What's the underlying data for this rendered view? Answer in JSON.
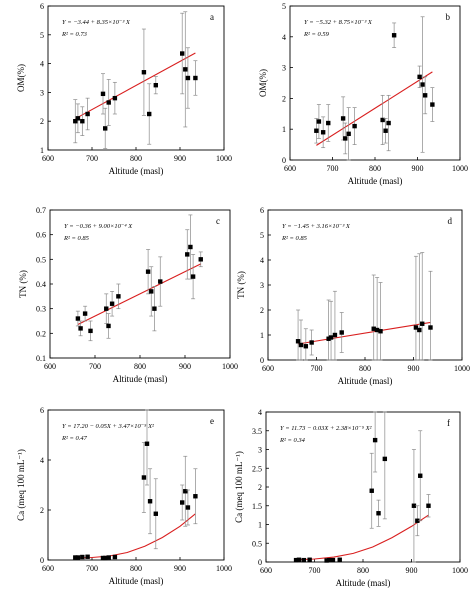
{
  "chart_data": [
    {
      "type": "scatter",
      "panel_label": "a",
      "equation": "Y = −3.44 + 8.35×10⁻³ X",
      "r2": "R² = 0.73",
      "xlabel": "Altitude (masl)",
      "ylabel": "OM(%)",
      "xlim": [
        600,
        1000
      ],
      "ylim": [
        1,
        6
      ],
      "xticks": [
        600,
        700,
        800,
        900,
        1000
      ],
      "yticks": [
        1,
        2,
        3,
        4,
        5,
        6
      ],
      "x": [
        662,
        668,
        678,
        690,
        725,
        730,
        738,
        752,
        818,
        830,
        845,
        905,
        912,
        918,
        935
      ],
      "y": [
        2.0,
        2.1,
        2.0,
        2.25,
        2.95,
        1.75,
        2.65,
        2.8,
        3.7,
        2.25,
        3.25,
        4.35,
        3.8,
        3.5,
        3.5
      ],
      "err": [
        0.75,
        0.5,
        0.5,
        0.55,
        0.7,
        0.7,
        0.8,
        0.55,
        1.5,
        1.05,
        0.3,
        1.4,
        2.0,
        1.05,
        0.6
      ],
      "fit": {
        "type": "linear",
        "a": -3.44,
        "b": 0.00835,
        "x_range": [
          662,
          935
        ]
      }
    },
    {
      "type": "scatter",
      "panel_label": "b",
      "equation": "Y = −5.32 + 8.75×10⁻³ X",
      "r2": "R² = 0.59",
      "xlabel": "Altitude (masl)",
      "ylabel": "OM(%)",
      "xlim": [
        600,
        1000
      ],
      "ylim": [
        0,
        5
      ],
      "xticks": [
        600,
        700,
        800,
        900,
        1000
      ],
      "yticks": [
        0,
        1,
        2,
        3,
        4,
        5
      ],
      "x": [
        662,
        668,
        678,
        690,
        725,
        730,
        738,
        752,
        818,
        825,
        832,
        845,
        905,
        912,
        918,
        935
      ],
      "y": [
        0.95,
        1.25,
        0.9,
        1.2,
        1.35,
        0.7,
        0.85,
        1.1,
        1.3,
        0.95,
        1.2,
        4.05,
        2.7,
        2.45,
        2.1,
        1.8
      ],
      "err": [
        0.4,
        0.55,
        0.5,
        0.6,
        0.7,
        0.5,
        0.85,
        0.6,
        0.8,
        0.4,
        0.9,
        0.4,
        0.35,
        2.2,
        0.6,
        0.55
      ],
      "fit": {
        "type": "linear",
        "a": -5.32,
        "b": 0.00875,
        "x_range": [
          662,
          935
        ]
      }
    },
    {
      "type": "scatter",
      "panel_label": "c",
      "equation": "Y = −0.36 + 9.00×10⁻⁴ X",
      "r2": "R² = 0.85",
      "xlabel": "Altitude (masl)",
      "ylabel": "TN (%)",
      "xlim": [
        600,
        1000
      ],
      "ylim": [
        0.1,
        0.7
      ],
      "xticks": [
        600,
        700,
        800,
        900,
        1000
      ],
      "yticks": [
        0.1,
        0.2,
        0.3,
        0.4,
        0.5,
        0.6,
        0.7
      ],
      "x": [
        662,
        668,
        678,
        690,
        725,
        730,
        738,
        752,
        818,
        825,
        832,
        845,
        905,
        912,
        918,
        935
      ],
      "y": [
        0.26,
        0.22,
        0.28,
        0.21,
        0.3,
        0.23,
        0.32,
        0.35,
        0.45,
        0.37,
        0.3,
        0.41,
        0.52,
        0.55,
        0.43,
        0.5
      ],
      "err": [
        0.03,
        0.03,
        0.03,
        0.04,
        0.06,
        0.05,
        0.05,
        0.05,
        0.09,
        0.1,
        0.09,
        0.1,
        0.1,
        0.13,
        0.09,
        0.03
      ],
      "fit": {
        "type": "linear",
        "a": -0.36,
        "b": 0.0009,
        "x_range": [
          662,
          935
        ]
      }
    },
    {
      "type": "scatter",
      "panel_label": "d",
      "equation": "Y = −1.45 + 3.16×10⁻³ X",
      "r2": "R² = 0.85",
      "xlabel": "Altitude (masl)",
      "ylabel": "TN (%)",
      "xlim": [
        600,
        1000
      ],
      "ylim": [
        0,
        6
      ],
      "xticks": [
        600,
        700,
        800,
        900,
        1000
      ],
      "yticks": [
        0,
        1,
        2,
        3,
        4,
        5,
        6
      ],
      "x": [
        662,
        668,
        678,
        690,
        725,
        730,
        738,
        752,
        818,
        825,
        832,
        905,
        912,
        918,
        935
      ],
      "y": [
        0.75,
        0.6,
        0.55,
        0.7,
        0.85,
        0.9,
        1.0,
        1.1,
        1.25,
        1.2,
        1.15,
        1.3,
        1.2,
        1.45,
        1.3
      ],
      "err": [
        1.25,
        1.0,
        0.7,
        0.5,
        1.55,
        1.45,
        1.75,
        0.8,
        2.15,
        2.1,
        1.95,
        2.85,
        3.05,
        2.85,
        2.25
      ],
      "fit": {
        "type": "linear",
        "a": -1.45,
        "b": 0.00316,
        "x_range": [
          662,
          935
        ]
      }
    },
    {
      "type": "scatter",
      "panel_label": "e",
      "equation": "Y = 17.20 − 0.05X + 3.47×10⁻⁵ X²",
      "r2": "R² = 0.47",
      "xlabel": "Altitude (masl)",
      "ylabel": "Ca (meq 100 mL⁻¹)",
      "xlim": [
        600,
        1000
      ],
      "ylim": [
        0,
        6
      ],
      "xticks": [
        600,
        700,
        800,
        900,
        1000
      ],
      "yticks": [
        0,
        2,
        4,
        6
      ],
      "x": [
        662,
        668,
        678,
        690,
        725,
        730,
        738,
        752,
        818,
        825,
        832,
        845,
        905,
        912,
        918,
        935
      ],
      "y": [
        0.1,
        0.1,
        0.12,
        0.13,
        0.08,
        0.08,
        0.1,
        0.12,
        3.3,
        4.65,
        2.35,
        1.85,
        2.3,
        2.75,
        2.1,
        2.55
      ],
      "err": [
        0.05,
        0.05,
        0.05,
        0.05,
        0.04,
        0.04,
        0.05,
        0.05,
        1.4,
        1.65,
        1.3,
        1.4,
        0.7,
        1.4,
        0.7,
        1.1
      ],
      "fit": {
        "type": "quadratic",
        "x_range": [
          662,
          935
        ],
        "points": [
          [
            662,
            0.08
          ],
          [
            700,
            0.1
          ],
          [
            740,
            0.16
          ],
          [
            780,
            0.3
          ],
          [
            820,
            0.55
          ],
          [
            860,
            0.9
          ],
          [
            900,
            1.35
          ],
          [
            935,
            1.85
          ]
        ]
      }
    },
    {
      "type": "scatter",
      "panel_label": "f",
      "equation": "Y = 11.73 − 0.03X + 2.38×10⁻⁵ X²",
      "r2": "R² = 0.34",
      "xlabel": "Altitude (masl)",
      "ylabel": "Ca (meq 100 mL⁻¹)",
      "xlim": [
        600,
        1000
      ],
      "ylim": [
        0,
        4
      ],
      "xticks": [
        600,
        700,
        800,
        900,
        1000
      ],
      "yticks": [
        0,
        0.5,
        1,
        1.5,
        2,
        2.5,
        3,
        3.5,
        4
      ],
      "x": [
        662,
        668,
        678,
        690,
        725,
        730,
        738,
        752,
        818,
        825,
        832,
        845,
        905,
        912,
        918,
        935
      ],
      "y": [
        0.05,
        0.06,
        0.05,
        0.06,
        0.04,
        0.05,
        0.05,
        0.06,
        1.9,
        3.25,
        1.3,
        2.75,
        1.5,
        1.1,
        2.3,
        1.5
      ],
      "err": [
        0.03,
        0.03,
        0.03,
        0.03,
        0.03,
        0.03,
        0.03,
        0.03,
        1.0,
        0.85,
        0.35,
        1.6,
        1.5,
        0.4,
        1.2,
        0.3
      ],
      "fit": {
        "type": "quadratic",
        "x_range": [
          662,
          935
        ],
        "points": [
          [
            662,
            0.06
          ],
          [
            700,
            0.08
          ],
          [
            740,
            0.13
          ],
          [
            780,
            0.23
          ],
          [
            820,
            0.4
          ],
          [
            860,
            0.65
          ],
          [
            900,
            0.95
          ],
          [
            935,
            1.25
          ]
        ]
      }
    }
  ]
}
